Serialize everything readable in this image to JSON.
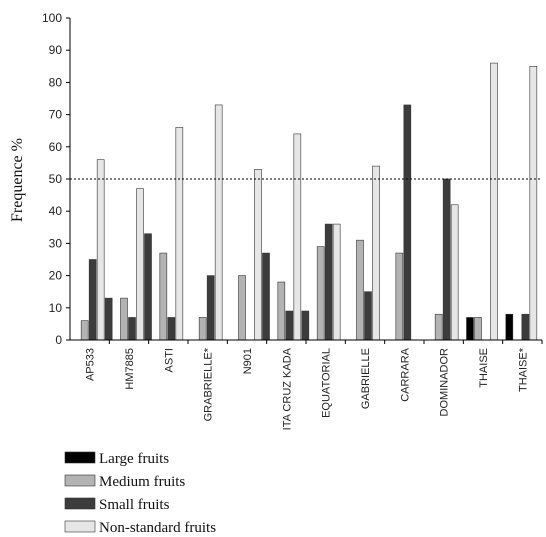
{
  "chart_data": {
    "type": "bar",
    "ylabel": "Frequence %",
    "ylim": [
      0,
      100
    ],
    "yticks": [
      0,
      10,
      20,
      30,
      40,
      50,
      60,
      70,
      80,
      90,
      100
    ],
    "reference_line": 50,
    "categories": [
      "AP533",
      "HM7885",
      "ASTI",
      "GRABRIELLE*",
      "N901",
      "ITA CRUZ KADA",
      "EQUATORIAL",
      "GABRIELLE",
      "CARRARA",
      "DOMINADOR",
      "THAISE",
      "THAISE*"
    ],
    "series": [
      {
        "name": "Large fruits",
        "color": "#000000",
        "values": [
          0,
          0,
          0,
          0,
          0,
          0,
          0,
          0,
          0,
          0,
          7,
          8
        ]
      },
      {
        "name": "Medium fruits",
        "color": "#b3b3b3",
        "values": [
          6,
          13,
          27,
          7,
          20,
          18,
          29,
          31,
          27,
          8,
          7,
          0
        ]
      },
      {
        "name": "Small fruits",
        "color": "#3c3c3c",
        "values": [
          25,
          7,
          7,
          20,
          0,
          9,
          36,
          15,
          73,
          50,
          0,
          8
        ]
      },
      {
        "name": "Non-standard fruits",
        "color": "#e6e6e6",
        "values": [
          56,
          47,
          66,
          73,
          53,
          64,
          36,
          54,
          0,
          42,
          86,
          85
        ]
      }
    ],
    "extra_bars": [
      {
        "category": "AP533",
        "color": "#3c3c3c",
        "value": 13
      },
      {
        "category": "HM7885",
        "color": "#3c3c3c",
        "value": 33
      },
      {
        "category": "N901",
        "color": "#3c3c3c",
        "value": 27
      },
      {
        "category": "ITA CRUZ KADA",
        "color": "#3c3c3c",
        "value": 9
      }
    ],
    "legend_position": "bottom-left",
    "grid": false
  }
}
